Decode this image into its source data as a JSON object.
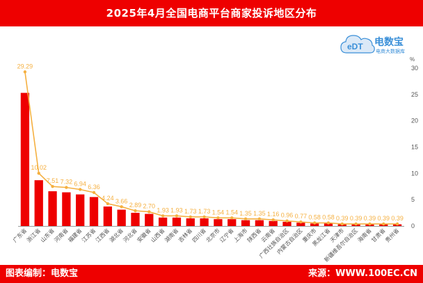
{
  "header": {
    "title": "2025年4月全国电商平台商家投诉地区分布"
  },
  "footer": {
    "left": "图表编制：电数宝",
    "right": "来源：WWW.100EC.CN"
  },
  "logo": {
    "mark": "eDT",
    "brand": "电数宝",
    "tagline": "电商大数据库"
  },
  "colors": {
    "bar": "#ee0000",
    "line": "#f5b041",
    "header": "#ee0000",
    "axis": "#555555"
  },
  "chart_data": {
    "type": "bar",
    "title": "2025年4月全国电商平台商家投诉地区分布",
    "yunit": "%",
    "ylim": [
      0,
      30
    ],
    "yticks": [
      0,
      5,
      10,
      15,
      20,
      25,
      30
    ],
    "categories": [
      "广东省",
      "浙江省",
      "山东省",
      "河南省",
      "福建省",
      "江苏省",
      "江西省",
      "湖北省",
      "河北省",
      "安徽省",
      "山西省",
      "湖南省",
      "吉林省",
      "四川省",
      "北京市",
      "辽宁省",
      "上海市",
      "陕西省",
      "云南省",
      "广西壮族自治区",
      "内蒙古自治区",
      "重庆市",
      "黑龙江省",
      "天津市",
      "新疆维吾尔自治区",
      "海南省",
      "甘肃省",
      "贵州省"
    ],
    "values": [
      29.29,
      10.02,
      7.51,
      7.32,
      6.94,
      6.36,
      4.24,
      3.66,
      2.89,
      2.7,
      1.93,
      1.93,
      1.73,
      1.73,
      1.54,
      1.54,
      1.35,
      1.35,
      1.16,
      0.96,
      0.77,
      0.58,
      0.58,
      0.39,
      0.39,
      0.39,
      0.39,
      0.39
    ],
    "labels": [
      "29.29",
      "10.02",
      "7.51",
      "7.32",
      "6.94",
      "6.36",
      "4.24",
      "3.66",
      "2.89",
      "2.70",
      "1.93",
      "1.93",
      "1.73",
      "1.73",
      "1.54",
      "1.54",
      "1.35",
      "1.35",
      "1.16",
      "0.96",
      "0.77",
      "0.58",
      "0.58",
      "0.39",
      "0.39",
      "0.39",
      "0.39",
      "0.39"
    ],
    "series": [
      {
        "type": "bar",
        "values": [
          25.3,
          8.7,
          6.6,
          6.4,
          6.0,
          5.5,
          3.7,
          3.1,
          2.5,
          2.3,
          1.6,
          1.6,
          1.45,
          1.45,
          1.3,
          1.3,
          1.1,
          1.1,
          0.95,
          0.8,
          0.63,
          0.48,
          0.48,
          0.32,
          0.32,
          0.32,
          0.32,
          0.32
        ]
      },
      {
        "type": "line",
        "values": [
          29.29,
          10.02,
          7.51,
          7.32,
          6.94,
          6.36,
          4.24,
          3.66,
          2.89,
          2.7,
          1.93,
          1.93,
          1.73,
          1.73,
          1.54,
          1.54,
          1.35,
          1.35,
          1.16,
          0.96,
          0.77,
          0.58,
          0.58,
          0.39,
          0.39,
          0.39,
          0.39,
          0.39
        ]
      }
    ],
    "grid": false,
    "legend": "none"
  }
}
